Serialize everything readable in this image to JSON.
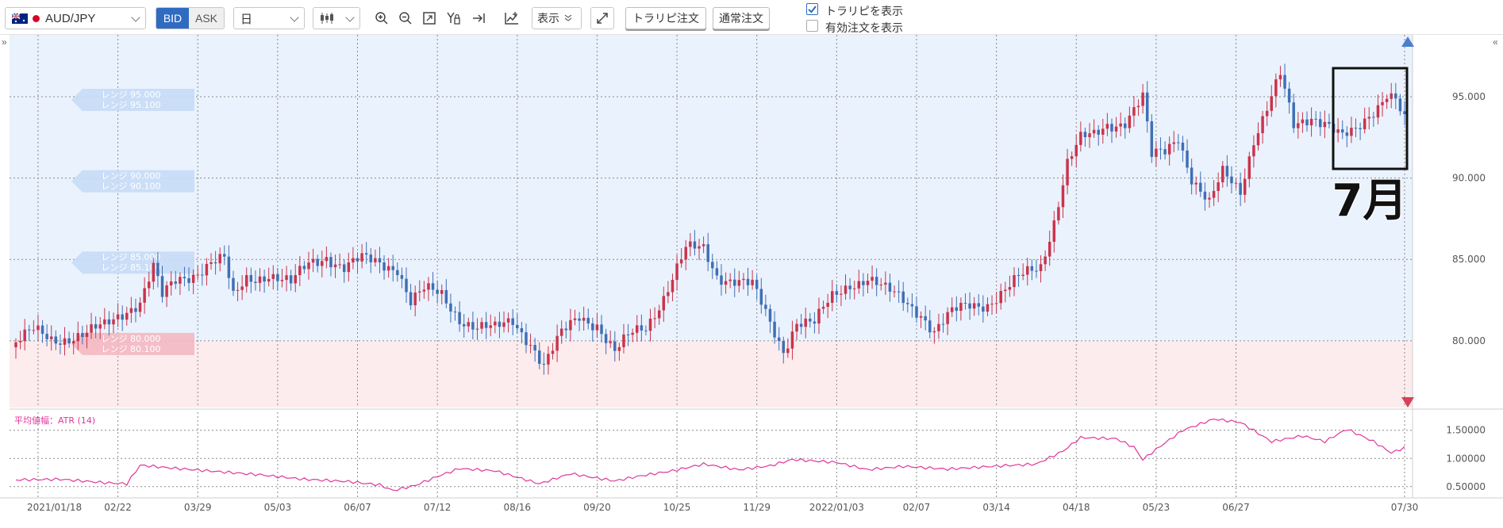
{
  "toolbar": {
    "symbol": "AUD/JPY",
    "bid_label": "BID",
    "ask_label": "ASK",
    "timeframe": "日",
    "display_label": "表示",
    "trailing_order_label": "トラリピ注文",
    "normal_order_label": "通常注文",
    "show_trailing_label": "トラリピを表示",
    "show_trailing_checked": true,
    "show_orders_label": "有効注文を表示",
    "show_orders_checked": false,
    "collapse_left": "»",
    "collapse_right": "«"
  },
  "colors": {
    "up": "#c9344c",
    "down": "#3f6fb5",
    "buy_zone": "#eaf2fd",
    "sell_zone": "#fdeced",
    "atr_line": "#e0379b",
    "accent": "#2f6bc0"
  },
  "annotation": {
    "label": "7月"
  },
  "chart_data": [
    {
      "type": "candlestick",
      "symbol": "AUD/JPY",
      "y_ticks": [
        "95.000",
        "90.000",
        "85.000",
        "80.000"
      ],
      "ylim": [
        75.9,
        98.8
      ],
      "x_ticks": [
        "2021/01/18",
        "02/22",
        "03/29",
        "05/03",
        "06/07",
        "07/12",
        "08/16",
        "09/20",
        "10/25",
        "11/29",
        "2022/01/03",
        "02/07",
        "03/14",
        "04/18",
        "05/23",
        "06/27",
        "07/30"
      ],
      "price_path": [
        [
          0,
          79.9
        ],
        [
          4,
          80.5
        ],
        [
          8,
          80.1
        ],
        [
          12,
          80.3
        ],
        [
          16,
          80.4
        ],
        [
          20,
          80.8
        ],
        [
          25,
          82.0
        ],
        [
          28,
          82.5
        ],
        [
          31,
          84.5
        ],
        [
          33,
          82.6
        ],
        [
          36,
          83.6
        ],
        [
          40,
          84.2
        ],
        [
          44,
          84.9
        ],
        [
          47,
          84.9
        ],
        [
          49,
          82.5
        ],
        [
          52,
          83.8
        ],
        [
          57,
          84.2
        ],
        [
          62,
          83.4
        ],
        [
          66,
          84.7
        ],
        [
          70,
          85.3
        ],
        [
          74,
          84.5
        ],
        [
          78,
          84.9
        ],
        [
          82,
          84.8
        ],
        [
          86,
          84.6
        ],
        [
          89,
          82.4
        ],
        [
          92,
          83.0
        ],
        [
          96,
          82.8
        ],
        [
          100,
          81.5
        ],
        [
          104,
          80.8
        ],
        [
          108,
          80.6
        ],
        [
          112,
          81.3
        ],
        [
          116,
          80.0
        ],
        [
          119,
          78.4
        ],
        [
          123,
          80.3
        ],
        [
          127,
          81.6
        ],
        [
          131,
          81.1
        ],
        [
          135,
          79.2
        ],
        [
          139,
          80.4
        ],
        [
          142,
          80.9
        ],
        [
          146,
          82.8
        ],
        [
          151,
          85.5
        ],
        [
          155,
          85.6
        ],
        [
          158,
          84.1
        ],
        [
          162,
          83.8
        ],
        [
          166,
          83.3
        ],
        [
          170,
          81.0
        ],
        [
          173,
          79.5
        ],
        [
          176,
          81.3
        ],
        [
          180,
          81.0
        ],
        [
          184,
          82.6
        ],
        [
          188,
          83.6
        ],
        [
          192,
          83.9
        ],
        [
          196,
          83.0
        ],
        [
          200,
          82.5
        ],
        [
          204,
          81.8
        ],
        [
          207,
          80.6
        ],
        [
          211,
          81.6
        ],
        [
          215,
          82.2
        ],
        [
          219,
          82.4
        ],
        [
          223,
          83.1
        ],
        [
          227,
          83.9
        ],
        [
          231,
          84.6
        ],
        [
          234,
          87.5
        ],
        [
          237,
          91.0
        ],
        [
          240,
          92.3
        ],
        [
          243,
          92.5
        ],
        [
          246,
          93.3
        ],
        [
          250,
          93.6
        ],
        [
          254,
          94.9
        ],
        [
          256,
          91.2
        ],
        [
          259,
          91.6
        ],
        [
          262,
          92.7
        ],
        [
          265,
          90.1
        ],
        [
          269,
          88.3
        ],
        [
          272,
          90.2
        ],
        [
          276,
          89.3
        ],
        [
          279,
          92.5
        ],
        [
          282,
          94.3
        ],
        [
          285,
          96.2
        ],
        [
          288,
          93.1
        ],
        [
          292,
          93.9
        ],
        [
          295,
          93.6
        ],
        [
          299,
          92.4
        ],
        [
          302,
          92.7
        ],
        [
          306,
          94.2
        ],
        [
          309,
          95.4
        ],
        [
          311,
          95.0
        ],
        [
          313,
          93.5
        ]
      ],
      "range_labels": [
        "レンジ 95.000",
        "レンジ 95.100",
        "レンジ 90.000",
        "レンジ 90.100",
        "レンジ 85.000",
        "レンジ 85.100",
        "レンジ 80.000",
        "レンジ 80.100"
      ]
    },
    {
      "type": "line",
      "title": "平均値幅：ATR (14)",
      "y_ticks": [
        "1.50000",
        "1.00000",
        "0.50000"
      ],
      "ylim": [
        0.3,
        1.82
      ],
      "series": [
        {
          "values_path": [
            [
              0,
              0.62
            ],
            [
              10,
              0.63
            ],
            [
              20,
              0.57
            ],
            [
              25,
              0.55
            ],
            [
              28,
              0.88
            ],
            [
              35,
              0.83
            ],
            [
              45,
              0.77
            ],
            [
              55,
              0.71
            ],
            [
              65,
              0.63
            ],
            [
              75,
              0.59
            ],
            [
              82,
              0.53
            ],
            [
              85,
              0.43
            ],
            [
              90,
              0.52
            ],
            [
              95,
              0.68
            ],
            [
              100,
              0.82
            ],
            [
              108,
              0.78
            ],
            [
              115,
              0.62
            ],
            [
              118,
              0.55
            ],
            [
              125,
              0.73
            ],
            [
              135,
              0.6
            ],
            [
              140,
              0.68
            ],
            [
              148,
              0.78
            ],
            [
              155,
              0.9
            ],
            [
              163,
              0.8
            ],
            [
              170,
              0.87
            ],
            [
              175,
              0.98
            ],
            [
              185,
              0.93
            ],
            [
              192,
              0.8
            ],
            [
              200,
              0.86
            ],
            [
              210,
              0.81
            ],
            [
              220,
              0.86
            ],
            [
              230,
              0.9
            ],
            [
              236,
              1.13
            ],
            [
              240,
              1.37
            ],
            [
              248,
              1.35
            ],
            [
              252,
              1.2
            ],
            [
              254,
              0.98
            ],
            [
              258,
              1.22
            ],
            [
              263,
              1.5
            ],
            [
              270,
              1.7
            ],
            [
              276,
              1.64
            ],
            [
              283,
              1.3
            ],
            [
              290,
              1.4
            ],
            [
              295,
              1.3
            ],
            [
              300,
              1.52
            ],
            [
              306,
              1.3
            ],
            [
              310,
              1.1
            ],
            [
              313,
              1.19
            ]
          ]
        }
      ]
    }
  ]
}
